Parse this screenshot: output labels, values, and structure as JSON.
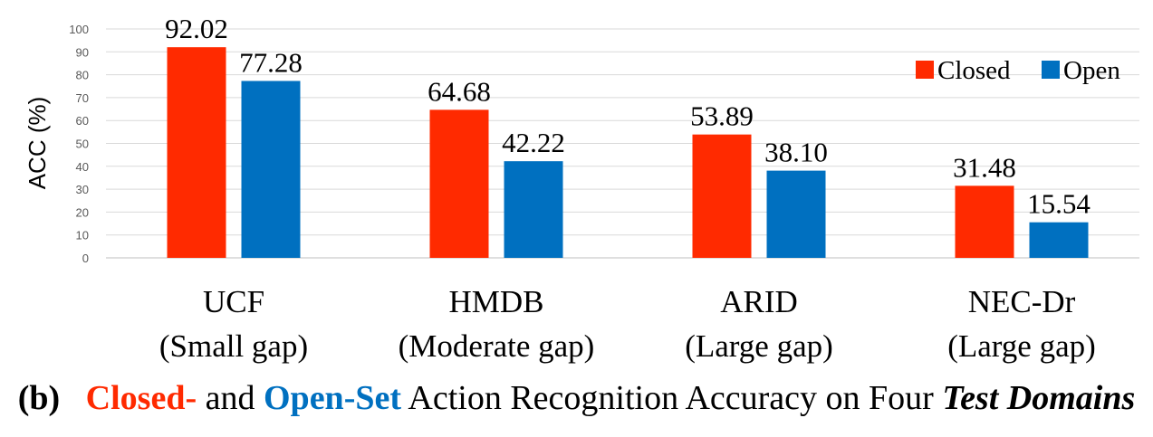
{
  "chart_data": {
    "type": "bar",
    "categories": [
      "UCF",
      "HMDB",
      "ARID",
      "NEC-Dr"
    ],
    "category_sublabels": [
      "(Small gap)",
      "(Moderate gap)",
      "(Large gap)",
      "(Large gap)"
    ],
    "series": [
      {
        "name": "Closed",
        "values": [
          92.02,
          64.68,
          53.89,
          31.48
        ],
        "color": "#ff2a00"
      },
      {
        "name": "Open",
        "values": [
          77.28,
          42.22,
          38.1,
          15.54
        ],
        "color": "#0070c0"
      }
    ],
    "value_labels": [
      [
        "92.02",
        "64.68",
        "53.89",
        "31.48"
      ],
      [
        "77.28",
        "42.22",
        "38.10",
        "15.54"
      ]
    ],
    "ylabel": "ACC (%)",
    "ylim": [
      0,
      100
    ],
    "yticks": [
      "0",
      "10",
      "20",
      "30",
      "40",
      "50",
      "60",
      "70",
      "80",
      "90",
      "100"
    ],
    "grid": true,
    "legend_position": "top-right"
  },
  "caption": {
    "prefix": "(b)",
    "closed": "Closed-",
    "and": " and ",
    "open": "Open-Set",
    "middle": " Action Recognition Accuracy on Four ",
    "italic": "Test Domains",
    "closed_color": "#ff2a00",
    "open_color": "#0070c0"
  }
}
